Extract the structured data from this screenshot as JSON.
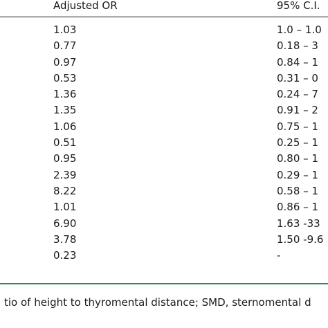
{
  "table": {
    "header": {
      "adjusted_or": "Adjusted OR",
      "ci": "95% C.I."
    },
    "rows": [
      {
        "or": "1.03",
        "ci": "1.0 – 1.0"
      },
      {
        "or": "0.77",
        "ci": "0.18 – 3"
      },
      {
        "or": "0.97",
        "ci": "0.84 – 1"
      },
      {
        "or": "0.53",
        "ci": "0.31 – 0"
      },
      {
        "or": "1.36",
        "ci": "0.24 – 7"
      },
      {
        "or": "1.35",
        "ci": "0.91 – 2"
      },
      {
        "or": "1.06",
        "ci": "0.75 – 1"
      },
      {
        "or": "0.51",
        "ci": "0.25 – 1"
      },
      {
        "or": "0.95",
        "ci": "0.80 – 1"
      },
      {
        "or": "2.39",
        "ci": "0.29 – 1"
      },
      {
        "or": "8.22",
        "ci": "0.58 – 1"
      },
      {
        "or": "1.01",
        "ci": "0.86 – 1"
      },
      {
        "or": "6.90",
        "ci": "1.63 -33"
      },
      {
        "or": "3.78",
        "ci": "1.50 -9.6"
      },
      {
        "or": "0.23",
        "ci": "-"
      }
    ],
    "footnote": "tio of height to thyromental distance; SMD, sternomental d"
  }
}
